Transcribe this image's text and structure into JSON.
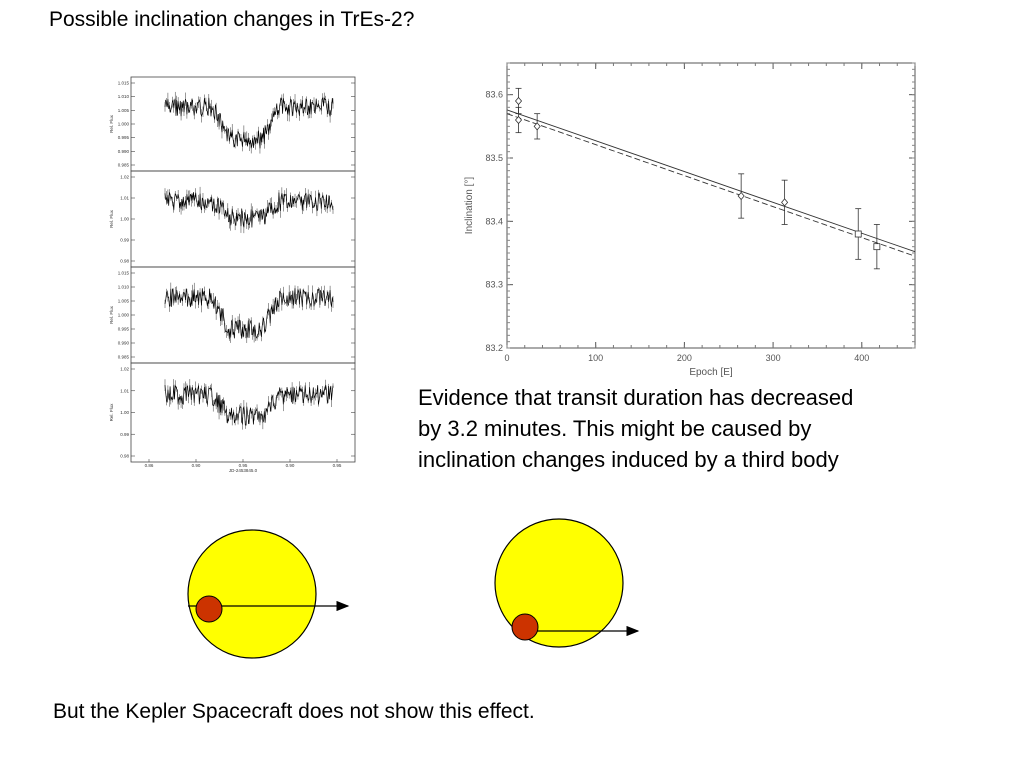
{
  "title": "Possible inclination changes in TrEs-2?",
  "chart_data": [
    {
      "type": "line",
      "panels": 4,
      "panel_ylabels": [
        "Rel. Flux",
        "Rel. Flux",
        "Rel. Flux",
        "Rel. Flux"
      ],
      "panel_yticks": [
        [
          "1.015",
          "1.010",
          "1.005",
          "1.000",
          "0.995",
          "0.990",
          "0.985"
        ],
        [
          "1.02",
          "1.01",
          "1.00",
          "0.99",
          "0.98"
        ],
        [
          "1.015",
          "1.010",
          "1.005",
          "1.000",
          "0.995",
          "0.990",
          "0.985"
        ],
        [
          "1.02",
          "1.01",
          "1.00",
          "0.99",
          "0.98"
        ]
      ],
      "xticks": [
        "0.86",
        "0.90",
        "0.95",
        "0.90",
        "0.95"
      ],
      "xlabel": "JD-2453845.0",
      "depths": [
        0.34,
        0.17,
        0.33,
        0.22
      ],
      "legend": "none",
      "grid": false
    },
    {
      "type": "scatter",
      "xlabel": "Epoch [E]",
      "ylabel": "Inclination [°]",
      "xlim": [
        0,
        460
      ],
      "ylim": [
        83.2,
        83.65
      ],
      "xticks": [
        0,
        100,
        200,
        300,
        400
      ],
      "yticks": [
        83.2,
        83.3,
        83.4,
        83.5,
        83.6
      ],
      "yticklabels": [
        "83.2",
        "83.3",
        "83.4",
        "83.5",
        "83.6"
      ],
      "xticklabels": [
        "0",
        "100",
        "200",
        "300",
        "400"
      ],
      "series": [
        {
          "marker": "diamond",
          "x": [
            13,
            13,
            34,
            264,
            313
          ],
          "y": [
            83.59,
            83.56,
            83.55,
            83.44,
            83.43
          ],
          "err": [
            0.02,
            0.02,
            0.02,
            0.035,
            0.035
          ]
        },
        {
          "marker": "square",
          "x": [
            396,
            417
          ],
          "y": [
            83.38,
            83.36
          ],
          "err": [
            0.04,
            0.035
          ]
        }
      ],
      "fits": [
        {
          "style": "solid",
          "x": [
            0,
            460
          ],
          "y": [
            83.576,
            83.352
          ]
        },
        {
          "style": "dashed",
          "x": [
            0,
            460
          ],
          "y": [
            83.57,
            83.345
          ]
        }
      ],
      "grid": false
    }
  ],
  "evidence_lines": [
    "Evidence that transit duration has decreased",
    "by 3.2 minutes. This might be caused by",
    "inclination changes induced by a third body"
  ],
  "colors": {
    "star": "#ffff00",
    "planet": "#cc3300",
    "outline": "#000000"
  },
  "footer": "But the Kepler Spacecraft does not show this effect."
}
